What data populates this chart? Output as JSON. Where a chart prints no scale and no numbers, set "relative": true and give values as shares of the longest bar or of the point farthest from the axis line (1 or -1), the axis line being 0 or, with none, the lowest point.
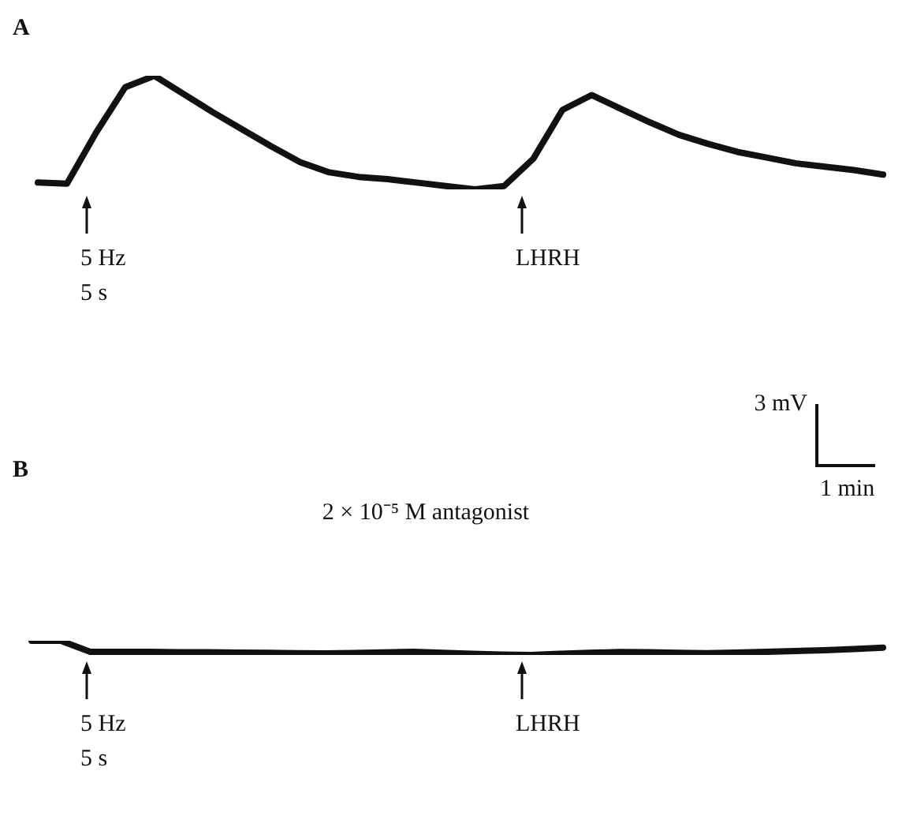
{
  "chart_data": [
    {
      "type": "line",
      "title": "A",
      "relative": true,
      "marker": "none",
      "tick_labels": false,
      "categories": [
        null,
        null,
        null,
        null,
        null,
        null,
        null,
        null,
        null,
        null,
        null,
        null,
        null,
        null,
        null,
        null,
        null,
        null,
        null,
        null,
        null,
        null,
        null,
        null,
        null,
        null,
        null,
        null,
        null,
        null
      ],
      "series": [
        {
          "color": "#111111",
          "values": [
            0.06,
            0.05,
            0.5,
            0.9,
            1,
            0.84,
            0.68,
            0.53,
            0.38,
            0.24,
            0.15,
            0.11,
            0.09,
            0.06,
            0.03,
            0,
            0.03,
            0.27,
            0.7,
            0.83,
            0.71,
            0.59,
            0.48,
            0.4,
            0.33,
            0.28,
            0.23,
            0.2,
            0.17,
            0.13
          ]
        }
      ],
      "annotations": [
        "5 Hz\n5 s",
        "LHRH",
        "3 mV",
        "1 min"
      ]
    },
    {
      "type": "line",
      "title": "B",
      "subtitle": "2 × 10⁻⁵ M antagonist",
      "relative": true,
      "marker": "none",
      "tick_labels": false,
      "categories": [
        null,
        null,
        null,
        null,
        null,
        null,
        null,
        null,
        null,
        null,
        null,
        null,
        null,
        null,
        null,
        null,
        null,
        null,
        null,
        null,
        null,
        null,
        null,
        null,
        null,
        null,
        null,
        null,
        null,
        null
      ],
      "series": [
        {
          "color": "#111111",
          "values": [
            1,
            1,
            0.22,
            0.22,
            0.22,
            0.2,
            0.19,
            0.17,
            0.15,
            0.13,
            0.11,
            0.14,
            0.18,
            0.22,
            0.15,
            0.09,
            0.03,
            0,
            0.08,
            0.15,
            0.21,
            0.19,
            0.15,
            0.12,
            0.16,
            0.22,
            0.28,
            0.33,
            0.42,
            0.52
          ]
        }
      ],
      "annotations": [
        "5 Hz\n5 s",
        "LHRH"
      ]
    }
  ]
}
